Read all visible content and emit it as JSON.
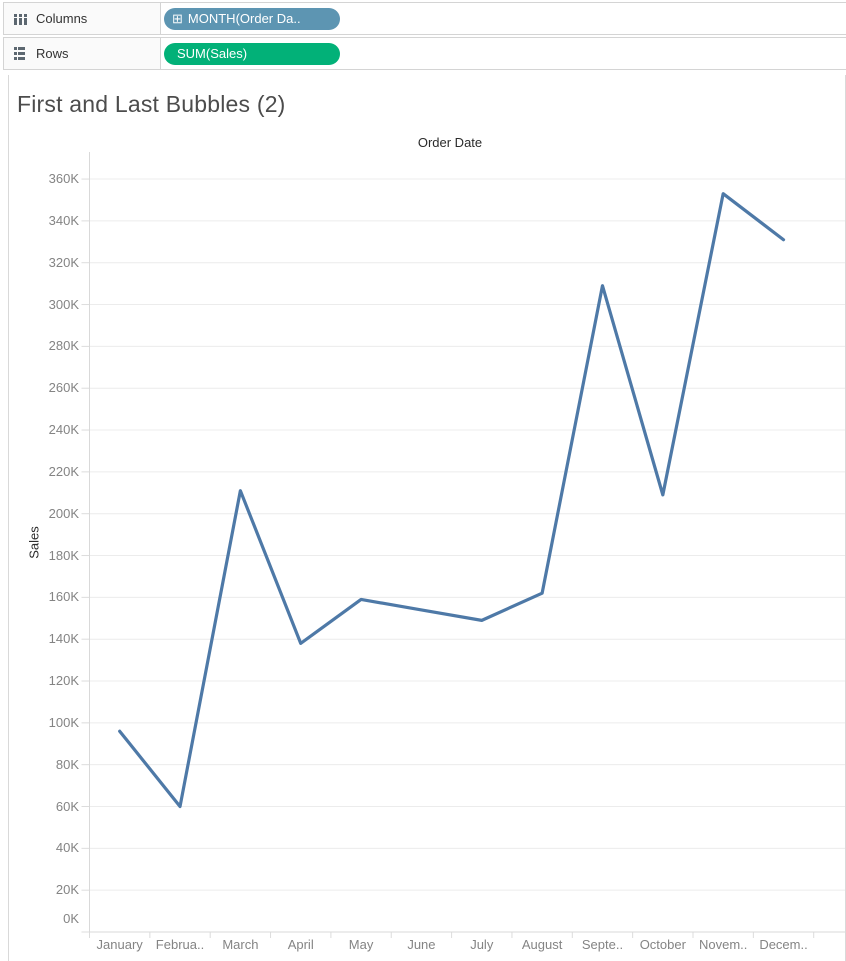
{
  "shelves": {
    "columns": {
      "label": "Columns",
      "pill": {
        "text": "MONTH(Order Da..",
        "expand_glyph": "⊞",
        "type": "discrete-dimension"
      }
    },
    "rows": {
      "label": "Rows",
      "pill": {
        "text": "SUM(Sales)",
        "type": "continuous-measure"
      }
    }
  },
  "sheet": {
    "title": "First and Last Bubbles (2)"
  },
  "chart_data": {
    "type": "line",
    "title": "First and Last Bubbles (2)",
    "xlabel": "Order Date",
    "ylabel": "Sales",
    "categories": [
      "January",
      "February",
      "March",
      "April",
      "May",
      "June",
      "July",
      "August",
      "September",
      "October",
      "November",
      "December"
    ],
    "categories_display": [
      "January",
      "Februa..",
      "March",
      "April",
      "May",
      "June",
      "July",
      "August",
      "Septe..",
      "October",
      "Novem..",
      "Decem.."
    ],
    "values": [
      96000,
      60000,
      211000,
      138000,
      159000,
      154000,
      149000,
      162000,
      309000,
      209000,
      353000,
      331000
    ],
    "ylim": [
      0,
      373000
    ],
    "ytick_step": 20000,
    "ytick_labels": [
      "0K",
      "20K",
      "40K",
      "60K",
      "80K",
      "100K",
      "120K",
      "140K",
      "160K",
      "180K",
      "200K",
      "220K",
      "240K",
      "260K",
      "280K",
      "300K",
      "320K",
      "340K",
      "360K"
    ],
    "grid": "horizontal",
    "legend": "none",
    "line_color": "#4e79a7"
  },
  "colors": {
    "pill_blue": "#5d95b2",
    "pill_green": "#02b178",
    "gridline": "#ececec",
    "axis_line": "#d9d9d9",
    "tick_mark": "#dcdcdc"
  }
}
